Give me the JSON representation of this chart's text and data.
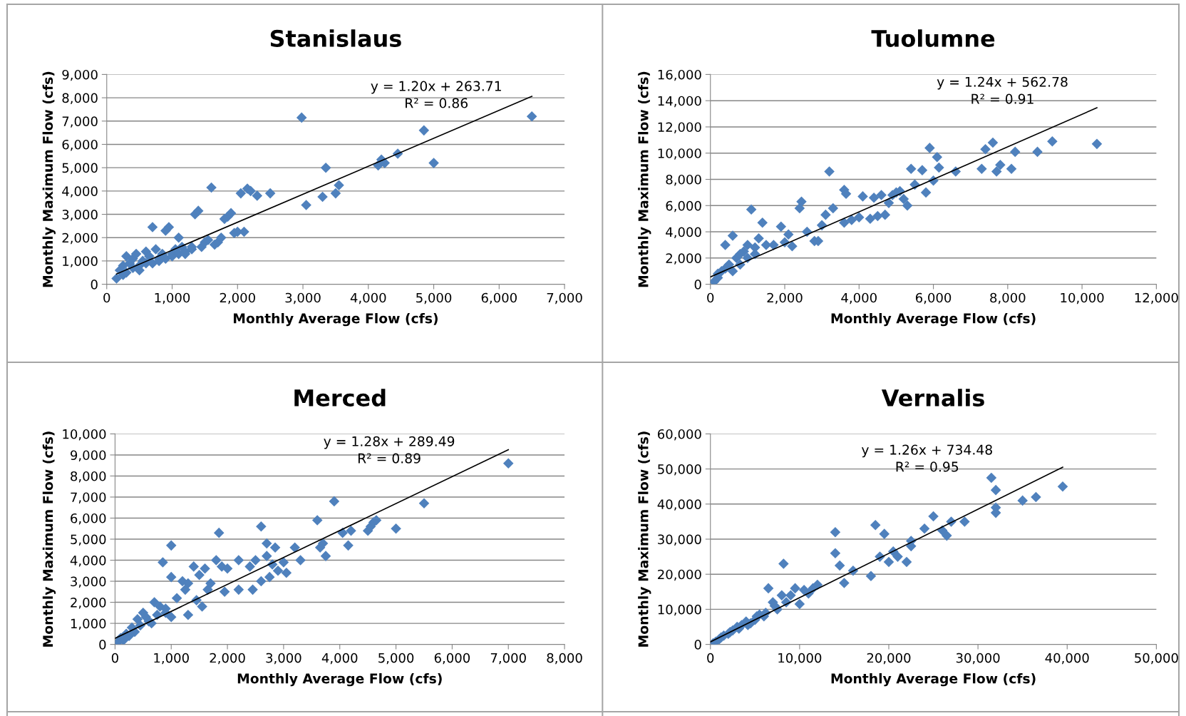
{
  "chart_data": [
    {
      "type": "scatter",
      "title": "Stanislaus",
      "xlabel": "Monthly Average Flow (cfs)",
      "ylabel": "Monthly Maximum Flow (cfs)",
      "grid": "y",
      "xlim": [
        0,
        7000
      ],
      "ylim": [
        0,
        9000
      ],
      "xticks": [
        0,
        {
          "value": 1000,
          "label": "1,000"
        },
        {
          "value": 2000,
          "label": "2,000"
        },
        {
          "value": 3000,
          "label": "3,000"
        },
        {
          "value": 4000,
          "label": "4,000"
        },
        {
          "value": 5000,
          "label": "5,000"
        },
        {
          "value": 6000,
          "label": "6,000"
        },
        {
          "value": 7000,
          "label": "7,000"
        }
      ],
      "yticks": [
        0,
        {
          "value": 1000,
          "label": "1,000"
        },
        {
          "value": 2000,
          "label": "2,000"
        },
        {
          "value": 3000,
          "label": "3,000"
        },
        {
          "value": 4000,
          "label": "4,000"
        },
        {
          "value": 5000,
          "label": "5,000"
        },
        {
          "value": 6000,
          "label": "6,000"
        },
        {
          "value": 7000,
          "label": "7,000"
        },
        {
          "value": 8000,
          "label": "8,000"
        },
        {
          "value": 9000,
          "label": "9,000"
        }
      ],
      "annotations": [
        "y = 1.20x + 263.71\nR² = 0.86"
      ],
      "series": [
        {
          "type": "scatter",
          "marker": "diamond",
          "color": "#4f81bd",
          "x": [
            150,
            200,
            250,
            300,
            350,
            400,
            450,
            500,
            550,
            600,
            650,
            700,
            750,
            800,
            850,
            900,
            950,
            1000,
            1050,
            1100,
            1150,
            1200,
            1300,
            1350,
            1400,
            1450,
            1500,
            1550,
            1600,
            1650,
            1700,
            1750,
            1800,
            1850,
            1900,
            1950,
            2000,
            2050,
            2100,
            2150,
            2200,
            2300,
            2500,
            2980,
            3050,
            3300,
            3350,
            3500,
            3550,
            4150,
            4200,
            4250,
            4450,
            4850,
            5000,
            6500,
            250,
            300,
            400,
            500,
            600,
            700,
            800,
            900,
            1000,
            1100,
            1200,
            1300
          ],
          "values": [
            250,
            600,
            800,
            1200,
            900,
            1100,
            1300,
            800,
            1000,
            1400,
            1200,
            2450,
            1500,
            1100,
            1300,
            2300,
            2450,
            1300,
            1500,
            2000,
            1600,
            1400,
            1600,
            3000,
            3150,
            1600,
            1800,
            1900,
            4150,
            1700,
            1800,
            2000,
            2800,
            2900,
            3050,
            2200,
            2250,
            3900,
            2250,
            4100,
            4000,
            3800,
            3900,
            7150,
            3400,
            3750,
            5000,
            3900,
            4250,
            5100,
            5350,
            5200,
            5600,
            6600,
            5200,
            7200,
            400,
            500,
            700,
            600,
            900,
            900,
            1000,
            1100,
            1200,
            1300,
            1300,
            1500
          ]
        },
        {
          "type": "line",
          "marker": "none",
          "color": "#000000",
          "x": [
            150,
            6500
          ],
          "values": [
            440,
            8060
          ]
        }
      ]
    },
    {
      "type": "scatter",
      "title": "Tuolumne",
      "xlabel": "Monthly Average Flow (cfs)",
      "ylabel": "Monthly Maximum Flow (cfs)",
      "grid": "y",
      "xlim": [
        0,
        12000
      ],
      "ylim": [
        0,
        16000
      ],
      "xticks": [
        0,
        {
          "value": 2000,
          "label": "2,000"
        },
        {
          "value": 4000,
          "label": "4,000"
        },
        {
          "value": 6000,
          "label": "6,000"
        },
        {
          "value": 8000,
          "label": "8,000"
        },
        {
          "value": 10000,
          "label": "10,000"
        },
        {
          "value": 12000,
          "label": "12,000"
        }
      ],
      "yticks": [
        0,
        {
          "value": 2000,
          "label": "2,000"
        },
        {
          "value": 4000,
          "label": "4,000"
        },
        {
          "value": 6000,
          "label": "6,000"
        },
        {
          "value": 8000,
          "label": "8,000"
        },
        {
          "value": 10000,
          "label": "10,000"
        },
        {
          "value": 12000,
          "label": "12,000"
        },
        {
          "value": 14000,
          "label": "14,000"
        },
        {
          "value": 16000,
          "label": "16,000"
        }
      ],
      "annotations": [
        "y = 1.24x + 562.78\nR² = 0.91"
      ],
      "series": [
        {
          "type": "scatter",
          "marker": "diamond",
          "color": "#4f81bd",
          "x": [
            100,
            200,
            300,
            400,
            500,
            600,
            700,
            800,
            900,
            1000,
            1100,
            1200,
            1300,
            1400,
            1500,
            1700,
            1900,
            2000,
            2100,
            2200,
            2400,
            2450,
            2600,
            2800,
            2900,
            3000,
            3100,
            3200,
            3300,
            3600,
            3650,
            3600,
            3800,
            4000,
            4100,
            4300,
            4400,
            4500,
            4600,
            4700,
            4800,
            4900,
            5000,
            5100,
            5200,
            5300,
            5400,
            5500,
            5700,
            5800,
            5900,
            6000,
            6100,
            6150,
            6600,
            7300,
            7400,
            7600,
            7700,
            7800,
            8100,
            8200,
            8800,
            9200,
            10400,
            200,
            400,
            600,
            800,
            1000,
            1200
          ],
          "values": [
            200,
            500,
            1000,
            3000,
            1500,
            3700,
            2000,
            1500,
            2500,
            3000,
            5700,
            2800,
            3500,
            4700,
            3000,
            3000,
            4400,
            3200,
            3800,
            2900,
            5800,
            6300,
            4000,
            3300,
            3300,
            4500,
            5300,
            8600,
            5800,
            7200,
            6900,
            4700,
            4900,
            5100,
            6700,
            5000,
            6600,
            5200,
            6800,
            5300,
            6200,
            6800,
            7000,
            7100,
            6500,
            6000,
            8800,
            7600,
            8700,
            7000,
            10400,
            7900,
            9700,
            8900,
            8600,
            8800,
            10300,
            10800,
            8600,
            9100,
            8800,
            10100,
            10100,
            10900,
            10700,
            800,
            1200,
            1000,
            2300,
            2000,
            2300
          ]
        },
        {
          "type": "line",
          "marker": "none",
          "color": "#000000",
          "x": [
            0,
            10400
          ],
          "values": [
            560,
            13460
          ]
        }
      ]
    },
    {
      "type": "scatter",
      "title": "Merced",
      "xlabel": "Monthly Average Flow (cfs)",
      "ylabel": "Monthly Maximum Flow (cfs)",
      "grid": "y",
      "xlim": [
        0,
        8000
      ],
      "ylim": [
        0,
        10000
      ],
      "xticks": [
        0,
        {
          "value": 1000,
          "label": "1,000"
        },
        {
          "value": 2000,
          "label": "2,000"
        },
        {
          "value": 3000,
          "label": "3,000"
        },
        {
          "value": 4000,
          "label": "4,000"
        },
        {
          "value": 5000,
          "label": "5,000"
        },
        {
          "value": 6000,
          "label": "6,000"
        },
        {
          "value": 7000,
          "label": "7,000"
        },
        {
          "value": 8000,
          "label": "8,000"
        }
      ],
      "yticks": [
        0,
        {
          "value": 1000,
          "label": "1,000"
        },
        {
          "value": 2000,
          "label": "2,000"
        },
        {
          "value": 3000,
          "label": "3,000"
        },
        {
          "value": 4000,
          "label": "4,000"
        },
        {
          "value": 5000,
          "label": "5,000"
        },
        {
          "value": 6000,
          "label": "6,000"
        },
        {
          "value": 7000,
          "label": "7,000"
        },
        {
          "value": 8000,
          "label": "8,000"
        },
        {
          "value": 9000,
          "label": "9,000"
        },
        {
          "value": 10000,
          "label": "10,000"
        }
      ],
      "annotations": [
        "y = 1.28x + 289.49\nR² = 0.89"
      ],
      "series": [
        {
          "type": "scatter",
          "marker": "diamond",
          "color": "#4f81bd",
          "x": [
            50,
            100,
            200,
            300,
            400,
            500,
            600,
            700,
            800,
            850,
            900,
            1000,
            1000,
            1000,
            1100,
            1200,
            1250,
            1300,
            1300,
            1400,
            1450,
            1500,
            1550,
            1600,
            1650,
            1700,
            1800,
            1850,
            1900,
            1950,
            2000,
            2200,
            2200,
            2400,
            2450,
            2500,
            2600,
            2600,
            2700,
            2700,
            2750,
            2800,
            2850,
            2900,
            3000,
            3050,
            3200,
            3300,
            3600,
            3650,
            3700,
            3750,
            3900,
            4050,
            4150,
            4200,
            4500,
            4550,
            4600,
            4650,
            5000,
            5500,
            7000,
            150,
            250,
            350,
            450,
            550,
            650,
            750,
            900
          ],
          "values": [
            100,
            300,
            500,
            800,
            1200,
            1500,
            1100,
            2000,
            1800,
            3900,
            1700,
            4700,
            3200,
            1300,
            2200,
            3000,
            2600,
            2900,
            1400,
            3700,
            2100,
            3300,
            1800,
            3600,
            2600,
            2900,
            4000,
            5300,
            3700,
            2500,
            3600,
            4000,
            2600,
            3700,
            2600,
            4000,
            5600,
            3000,
            4200,
            4800,
            3200,
            3800,
            4600,
            3500,
            3900,
            3400,
            4600,
            4000,
            5900,
            4600,
            4800,
            4200,
            6800,
            5300,
            4700,
            5400,
            5400,
            5600,
            5800,
            5900,
            5500,
            6700,
            8600,
            200,
            400,
            600,
            900,
            1300,
            1000,
            1400,
            1500
          ]
        },
        {
          "type": "line",
          "marker": "none",
          "color": "#000000",
          "x": [
            0,
            7000
          ],
          "values": [
            290,
            9250
          ]
        }
      ]
    },
    {
      "type": "scatter",
      "title": "Vernalis",
      "xlabel": "Monthly Average Flow (cfs)",
      "ylabel": "Monthly Maximum Flow (cfs)",
      "grid": "y",
      "xlim": [
        0,
        50000
      ],
      "ylim": [
        0,
        60000
      ],
      "xticks": [
        0,
        {
          "value": 10000,
          "label": "10,000"
        },
        {
          "value": 20000,
          "label": "20,000"
        },
        {
          "value": 30000,
          "label": "30,000"
        },
        {
          "value": 40000,
          "label": "40,000"
        },
        {
          "value": 50000,
          "label": "50,000"
        }
      ],
      "yticks": [
        0,
        {
          "value": 10000,
          "label": "10,000"
        },
        {
          "value": 20000,
          "label": "20,000"
        },
        {
          "value": 30000,
          "label": "30,000"
        },
        {
          "value": 40000,
          "label": "40,000"
        },
        {
          "value": 50000,
          "label": "50,000"
        },
        {
          "value": 60000,
          "label": "60,000"
        }
      ],
      "annotations": [
        "y = 1.26x + 734.48\nR² = 0.95"
      ],
      "series": [
        {
          "type": "scatter",
          "marker": "diamond",
          "color": "#4f81bd",
          "x": [
            300,
            600,
            1000,
            1500,
            2000,
            2500,
            3000,
            3500,
            4000,
            4500,
            5000,
            5500,
            6000,
            6500,
            7000,
            7500,
            8000,
            8200,
            8500,
            9000,
            9500,
            10000,
            10500,
            11000,
            11500,
            12000,
            14000,
            14000,
            14500,
            15000,
            16000,
            18000,
            18500,
            19000,
            19500,
            20000,
            20500,
            21000,
            22000,
            22500,
            22500,
            24000,
            25000,
            26000,
            26500,
            27000,
            28500,
            31500,
            32000,
            32000,
            32000,
            35000,
            36500,
            39500,
            1200,
            2200,
            3200,
            4200,
            5200,
            6200,
            7200
          ],
          "values": [
            300,
            800,
            1500,
            2500,
            3000,
            4000,
            5000,
            5500,
            6500,
            6000,
            7000,
            8500,
            8000,
            16000,
            12000,
            10000,
            14000,
            23000,
            12000,
            14000,
            16000,
            11500,
            15500,
            14500,
            16000,
            17000,
            32000,
            26000,
            22500,
            17500,
            21000,
            19500,
            34000,
            25000,
            31500,
            23500,
            26500,
            25000,
            23500,
            28000,
            29500,
            33000,
            36500,
            32500,
            31000,
            35000,
            35000,
            47500,
            44000,
            39000,
            37500,
            41000,
            42000,
            45000,
            2000,
            3500,
            4500,
            5500,
            8000,
            9000,
            11000
          ]
        },
        {
          "type": "line",
          "marker": "none",
          "color": "#000000",
          "x": [
            0,
            39500
          ],
          "values": [
            730,
            50500
          ]
        }
      ]
    }
  ]
}
